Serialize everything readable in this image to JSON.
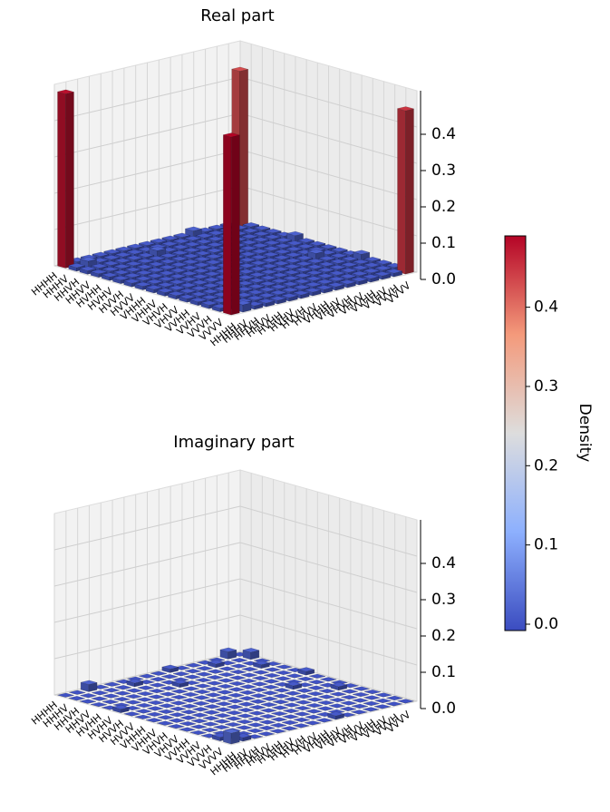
{
  "chart_data": [
    {
      "type": "bar3d",
      "title": "Real part",
      "categories": [
        "HHHH",
        "HHHV",
        "HHVH",
        "HHVV",
        "HVHH",
        "HVHV",
        "HVVH",
        "HVVV",
        "VHHH",
        "VHHV",
        "VHVH",
        "VHVV",
        "VVHH",
        "VVHV",
        "VVVH",
        "VVVV"
      ],
      "zlim": [
        0,
        0.5
      ],
      "zticks": [
        {
          "value": 0,
          "label": "0.0"
        },
        {
          "value": 0.1,
          "label": "0.1"
        },
        {
          "value": 0.2,
          "label": "0.2"
        },
        {
          "value": 0.3,
          "label": "0.3"
        },
        {
          "value": 0.4,
          "label": "0.4"
        }
      ],
      "values": [
        [
          0.43,
          0.01,
          0.01,
          0.01,
          0.01,
          0.02,
          0.01,
          0.01,
          0.01,
          0.01,
          0.01,
          0.02,
          0.01,
          0.01,
          0.01,
          0.45
        ],
        [
          0.01,
          0.01,
          0.01,
          0.01,
          0.01,
          0.01,
          0.01,
          0.01,
          0.01,
          0.01,
          0.01,
          0.01,
          0.01,
          0.01,
          0.01,
          0.01
        ],
        [
          0.01,
          0.01,
          0.01,
          0.01,
          0.01,
          0.01,
          0.01,
          0.01,
          0.01,
          0.02,
          0.01,
          0.01,
          0.01,
          0.01,
          0.01,
          0.01
        ],
        [
          0.01,
          0.01,
          0.01,
          0.01,
          0.01,
          0.01,
          0.01,
          0.01,
          0.01,
          0.01,
          0.01,
          0.01,
          0.01,
          0.01,
          0.01,
          0.01
        ],
        [
          0.02,
          0.01,
          0.01,
          0.01,
          0.01,
          0.01,
          0.01,
          0.01,
          0.01,
          0.01,
          0.01,
          0.01,
          0.01,
          0.01,
          0.01,
          0.01
        ],
        [
          0.01,
          0.01,
          0.01,
          0.01,
          0.01,
          0.01,
          0.01,
          0.01,
          0.01,
          0.01,
          0.01,
          0.01,
          0.01,
          0.01,
          0.01,
          0.01
        ],
        [
          0.01,
          0.01,
          0.01,
          0.01,
          0.01,
          0.01,
          0.01,
          0.01,
          0.01,
          0.01,
          0.01,
          0.01,
          0.01,
          0.01,
          0.01,
          0.01
        ],
        [
          0.01,
          0.01,
          0.01,
          0.01,
          0.01,
          0.01,
          0.01,
          0.01,
          0.01,
          0.01,
          0.01,
          0.01,
          0.01,
          0.01,
          0.01,
          0.01
        ],
        [
          0.01,
          0.01,
          0.01,
          0.01,
          0.01,
          0.01,
          0.01,
          0.01,
          0.01,
          0.01,
          0.01,
          0.01,
          0.01,
          0.01,
          0.01,
          0.01
        ],
        [
          0.01,
          0.01,
          0.02,
          0.01,
          0.01,
          0.01,
          0.01,
          0.01,
          0.01,
          0.01,
          0.01,
          0.01,
          0.01,
          0.01,
          0.01,
          0.01
        ],
        [
          0.01,
          0.01,
          0.01,
          0.01,
          0.01,
          0.01,
          0.01,
          0.01,
          0.01,
          0.01,
          0.01,
          0.01,
          0.01,
          0.01,
          0.01,
          0.01
        ],
        [
          0.01,
          0.01,
          0.01,
          0.01,
          0.01,
          0.01,
          0.01,
          0.01,
          0.01,
          0.01,
          0.01,
          0.01,
          0.01,
          0.01,
          0.01,
          0.01
        ],
        [
          0.01,
          0.01,
          0.01,
          0.01,
          0.01,
          0.01,
          0.01,
          0.01,
          0.01,
          0.01,
          0.01,
          0.01,
          0.01,
          0.01,
          0.01,
          0.01
        ],
        [
          0.01,
          0.01,
          0.01,
          0.01,
          0.01,
          0.01,
          0.01,
          0.01,
          0.01,
          0.01,
          0.01,
          0.01,
          0.01,
          0.01,
          0.01,
          0.01
        ],
        [
          0.01,
          0.02,
          0.01,
          0.01,
          0.01,
          0.01,
          0.01,
          0.01,
          0.01,
          0.01,
          0.01,
          0.01,
          0.01,
          0.01,
          0.01,
          0.02
        ],
        [
          0.48,
          0.01,
          0.01,
          0.01,
          0.01,
          0.01,
          0.01,
          0.01,
          0.01,
          0.01,
          0.01,
          0.01,
          0.01,
          0.01,
          0.01,
          0.49
        ]
      ]
    },
    {
      "type": "bar3d",
      "title": "Imaginary part",
      "categories": [
        "HHHH",
        "HHHV",
        "HHVH",
        "HHVV",
        "HVHH",
        "HVHV",
        "HVVH",
        "HVVV",
        "VHHH",
        "VHHV",
        "VHVH",
        "VHVV",
        "VVHH",
        "VVHV",
        "VVVH",
        "VVVV"
      ],
      "zlim": [
        0,
        0.5
      ],
      "zticks": [
        {
          "value": 0,
          "label": "0.0"
        },
        {
          "value": 0.1,
          "label": "0.1"
        },
        {
          "value": 0.2,
          "label": "0.2"
        },
        {
          "value": 0.3,
          "label": "0.3"
        },
        {
          "value": 0.4,
          "label": "0.4"
        }
      ],
      "values": [
        [
          0,
          0.02,
          0,
          0,
          0,
          0,
          0.01,
          0,
          0,
          0,
          0,
          0,
          0,
          0,
          0,
          0
        ],
        [
          0.02,
          0,
          0,
          0.01,
          0,
          0,
          0,
          0,
          0,
          0,
          0.01,
          0,
          0,
          0,
          0,
          0
        ],
        [
          0,
          0,
          0,
          0,
          0,
          0,
          0,
          0,
          0,
          0,
          0,
          0,
          0,
          0,
          0,
          0
        ],
        [
          0,
          0.01,
          0,
          0,
          0,
          0,
          0,
          0,
          0.01,
          0,
          0,
          0,
          0,
          0,
          0,
          0
        ],
        [
          0,
          0,
          0,
          0,
          0,
          0,
          0,
          0,
          0,
          0,
          0,
          0,
          0,
          0,
          0,
          0
        ],
        [
          0,
          0,
          0,
          0,
          0,
          0,
          0,
          0,
          0,
          0,
          0,
          0,
          0,
          0,
          0,
          0
        ],
        [
          0.01,
          0,
          0,
          0,
          0,
          0,
          0,
          0,
          0,
          0,
          0,
          0,
          0,
          0,
          0,
          0.01
        ],
        [
          0,
          0,
          0,
          0,
          0,
          0,
          0,
          0,
          0,
          0,
          0,
          0,
          0,
          0,
          0,
          0
        ],
        [
          0,
          0,
          0,
          0.01,
          0,
          0,
          0,
          0,
          0,
          0,
          0,
          0,
          0,
          0,
          0,
          0
        ],
        [
          0,
          0,
          0,
          0,
          0,
          0,
          0,
          0,
          0,
          0,
          0,
          0,
          0,
          0,
          0,
          0
        ],
        [
          0,
          0.01,
          0,
          0,
          0,
          0,
          0,
          0,
          0,
          0,
          0,
          0,
          0,
          0,
          0,
          0
        ],
        [
          0,
          0,
          0,
          0,
          0,
          0,
          0,
          0,
          0,
          0,
          0,
          0,
          0,
          0,
          0,
          0
        ],
        [
          0,
          0,
          0,
          0,
          0,
          0,
          0,
          0,
          0,
          0,
          0,
          0,
          0,
          0,
          0,
          0
        ],
        [
          0.02,
          0,
          0,
          0,
          0,
          0,
          0,
          0,
          0,
          0,
          0,
          0,
          0,
          0,
          0,
          0
        ],
        [
          0,
          0,
          0,
          0,
          0,
          0,
          0,
          0,
          0,
          0,
          0,
          0,
          0,
          0,
          0,
          0.01
        ],
        [
          0,
          0,
          0,
          0,
          0,
          0.01,
          0,
          0,
          0,
          0,
          0,
          0,
          0,
          0,
          0.01,
          0.03
        ]
      ]
    }
  ],
  "colorbar": {
    "label": "Density",
    "lim": [
      -0.008,
      0.49
    ],
    "ticks": [
      {
        "value": 0,
        "label": "0.0"
      },
      {
        "value": 0.1,
        "label": "0.1"
      },
      {
        "value": 0.2,
        "label": "0.2"
      },
      {
        "value": 0.3,
        "label": "0.3"
      },
      {
        "value": 0.4,
        "label": "0.4"
      }
    ]
  }
}
